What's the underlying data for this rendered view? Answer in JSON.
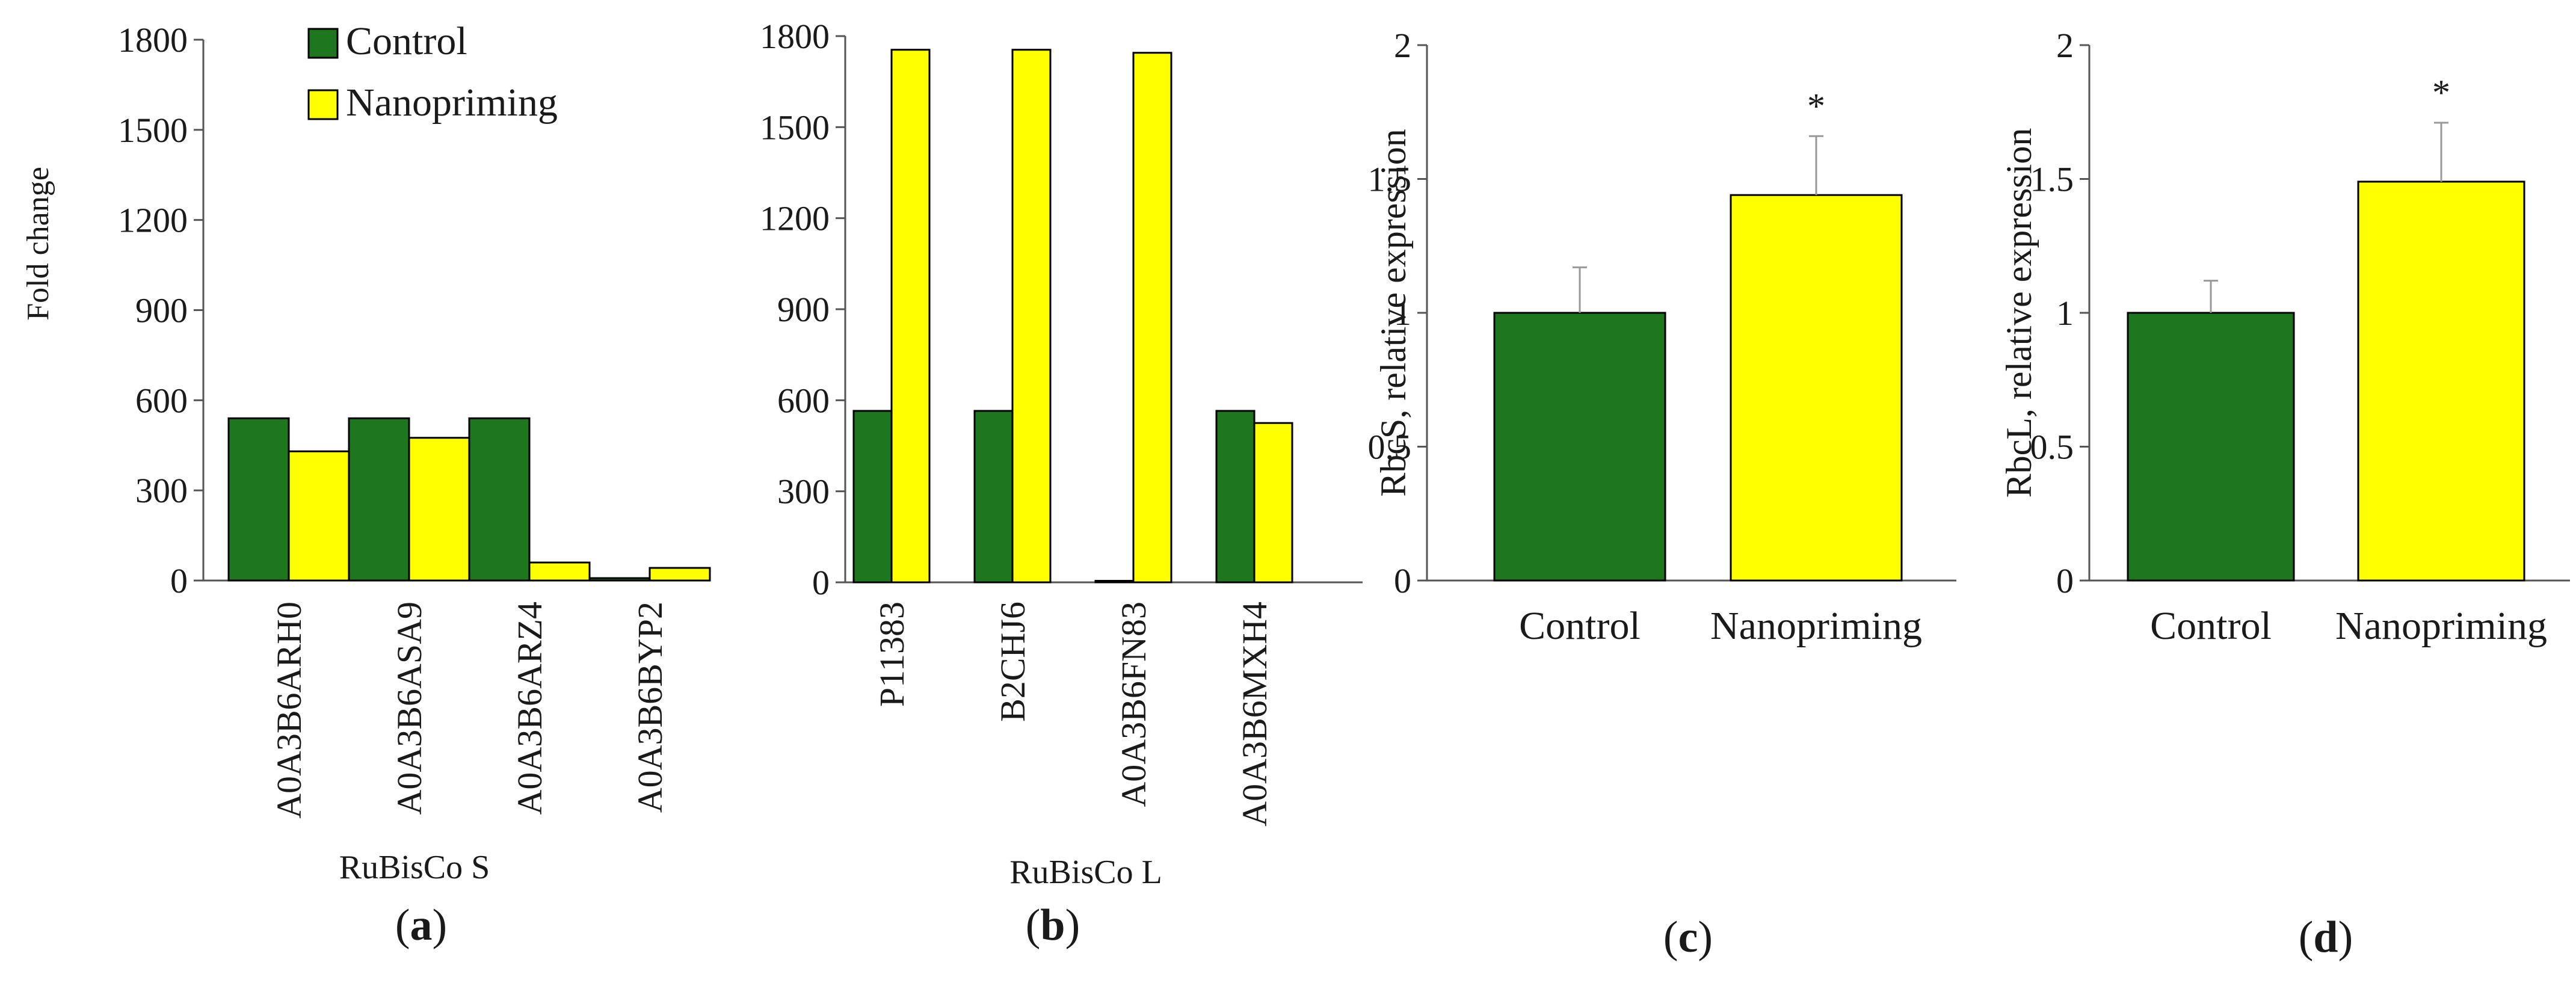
{
  "colors": {
    "control": "#1e771e",
    "nanopriming": "#ffff00",
    "axis": "#555555",
    "error": "#999999"
  },
  "legend": {
    "items": [
      {
        "label": "Control",
        "color": "#1e771e"
      },
      {
        "label": "Nanopriming",
        "color": "#ffff00"
      }
    ]
  },
  "chart_data": [
    {
      "type": "bar",
      "panel_label": "a",
      "title": "",
      "ylabel": "Fold change",
      "group_label": "RuBisCo S",
      "categories": [
        "A0A3B6ARH0",
        "A0A3B6ASA9",
        "A0A3B6ARZ4",
        "A0A3B6BYP2"
      ],
      "series": [
        {
          "name": "Control",
          "values": [
            540,
            540,
            540,
            8
          ]
        },
        {
          "name": "Nanopriming",
          "values": [
            430,
            475,
            60,
            42
          ]
        }
      ],
      "ylim": [
        0,
        1800
      ],
      "yticks": [
        "0",
        "300",
        "600",
        "900",
        "1200",
        "1500",
        "1800"
      ],
      "legend_position": "top-right"
    },
    {
      "type": "bar",
      "panel_label": "b",
      "title": "",
      "ylabel": "",
      "group_label": "RuBisCo L",
      "categories": [
        "P11383",
        "B2CHJ6",
        "A0A3B6FN83",
        "A0A3B6MXH4"
      ],
      "series": [
        {
          "name": "Control",
          "values": [
            565,
            565,
            5,
            565
          ]
        },
        {
          "name": "Nanopriming",
          "values": [
            1755,
            1755,
            1745,
            525
          ]
        }
      ],
      "ylim": [
        0,
        1800
      ],
      "yticks": [
        "0",
        "300",
        "600",
        "900",
        "1200",
        "1500",
        "1800"
      ]
    },
    {
      "type": "bar",
      "panel_label": "c",
      "title": "",
      "ylabel": "RbcS,  relative  expression",
      "categories": [
        "Control",
        "Nanopriming"
      ],
      "values": [
        1.0,
        1.44
      ],
      "errors": [
        0.17,
        0.22
      ],
      "significance": [
        "",
        "*"
      ],
      "ylim": [
        0,
        2
      ],
      "yticks": [
        "0",
        "0.5",
        "1",
        "1.5",
        "2"
      ]
    },
    {
      "type": "bar",
      "panel_label": "d",
      "title": "",
      "ylabel": "RbcL,  relative  expression",
      "categories": [
        "Control",
        "Nanopriming"
      ],
      "values": [
        1.0,
        1.49
      ],
      "errors": [
        0.12,
        0.22
      ],
      "significance": [
        "",
        "*"
      ],
      "ylim": [
        0,
        2
      ],
      "yticks": [
        "0",
        "0.5",
        "1",
        "1.5",
        "2"
      ]
    }
  ]
}
